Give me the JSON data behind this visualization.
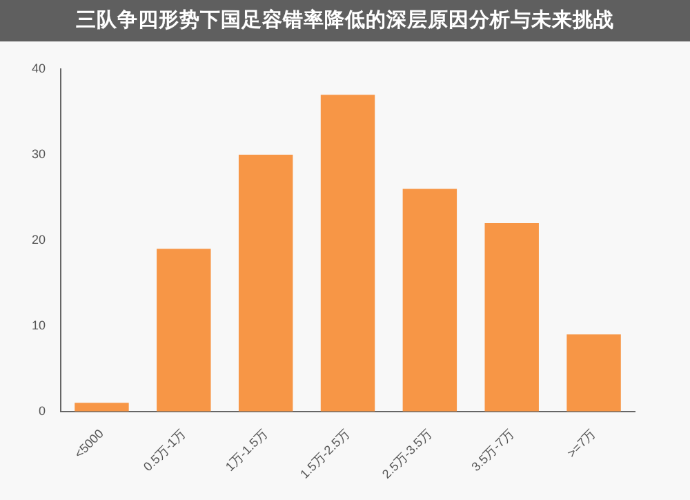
{
  "chart_data": {
    "type": "bar",
    "title": "三队争四形势下国足容错率降低的深层原因分析与未来挑战",
    "categories": [
      "<5000",
      "0.5万-1万",
      "1万-1.5万",
      "1.5万-2.5万",
      "2.5万-3.5万",
      "3.5万-7万",
      ">=7万"
    ],
    "values": [
      1,
      19,
      30,
      37,
      26,
      22,
      9
    ],
    "color": "#f79646",
    "ylim": [
      0,
      40
    ],
    "yticks": [
      0,
      10,
      20,
      30,
      40
    ],
    "grid": false,
    "legend": false
  }
}
